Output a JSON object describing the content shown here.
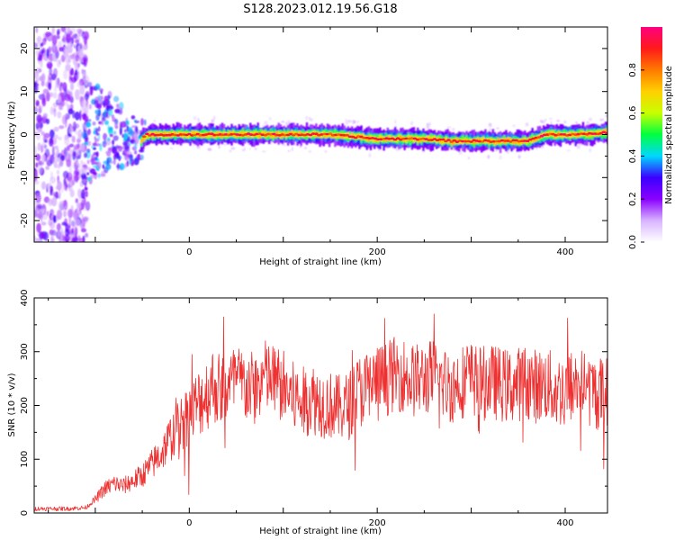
{
  "title": "S128.2023.012.19.56.G18",
  "chart_data": [
    {
      "type": "heatmap",
      "xlabel": "Height of straight line (km)",
      "ylabel": "Frequency (Hz)",
      "xlim": [
        -165,
        445
      ],
      "ylim": [
        -25,
        25
      ],
      "x_ticks": [
        0,
        200,
        400
      ],
      "y_ticks": [
        -20,
        -10,
        0,
        10,
        20
      ],
      "ridge": {
        "x": [
          -165,
          -110,
          -95,
          -80,
          -65,
          -52,
          -45,
          0,
          50,
          100,
          150,
          200,
          250,
          280,
          300,
          320,
          340,
          360,
          380,
          400,
          420,
          445
        ],
        "frequency": [
          0,
          0,
          0.5,
          0.5,
          -1.5,
          -1.5,
          0,
          0,
          0,
          0,
          0,
          -1,
          -1,
          -1.5,
          -1.5,
          -1.5,
          -1.5,
          -1.5,
          0,
          0,
          0,
          0.5
        ]
      },
      "colorbar": {
        "label": "Normalized spectral amplitude",
        "range": [
          0,
          1
        ],
        "ticks": [
          0.0,
          0.2,
          0.4,
          0.6,
          0.8
        ],
        "colors": [
          "#ffffff",
          "#d8b4ff",
          "#8a00ff",
          "#3a00ff",
          "#00d8ff",
          "#00ff40",
          "#c8ff00",
          "#ffd000",
          "#ff7a00",
          "#ff1a1a",
          "#ff0080"
        ]
      }
    },
    {
      "type": "line",
      "xlabel": "Height of straight line (km)",
      "ylabel": "SNR (10 * v/v)",
      "xlim": [
        -165,
        445
      ],
      "ylim": [
        0,
        400
      ],
      "x_ticks": [
        0,
        200,
        400
      ],
      "y_ticks": [
        0,
        100,
        200,
        300,
        400
      ],
      "color": "#ee3030",
      "series": [
        {
          "x": [
            -165,
            -150,
            -130,
            -110,
            -100,
            -90,
            -80,
            -70,
            -60,
            -50,
            -40,
            -30,
            -20,
            -10,
            0,
            10,
            20,
            25,
            30,
            40,
            50,
            60,
            70,
            80,
            90,
            100,
            110,
            120,
            130,
            140,
            150,
            160,
            170,
            180,
            190,
            200,
            210,
            220,
            230,
            240,
            250,
            260,
            270,
            280,
            290,
            300,
            310,
            320,
            330,
            340,
            350,
            360,
            370,
            380,
            390,
            400,
            410,
            420,
            430,
            445
          ],
          "values": [
            8,
            8,
            8,
            10,
            25,
            45,
            55,
            50,
            60,
            70,
            90,
            110,
            140,
            165,
            185,
            205,
            225,
            240,
            230,
            235,
            245,
            235,
            230,
            255,
            245,
            235,
            215,
            205,
            215,
            205,
            200,
            195,
            200,
            225,
            235,
            245,
            250,
            260,
            255,
            245,
            250,
            255,
            240,
            235,
            245,
            250,
            240,
            245,
            240,
            235,
            240,
            245,
            235,
            240,
            225,
            230,
            240,
            235,
            225,
            220
          ]
        }
      ]
    }
  ]
}
